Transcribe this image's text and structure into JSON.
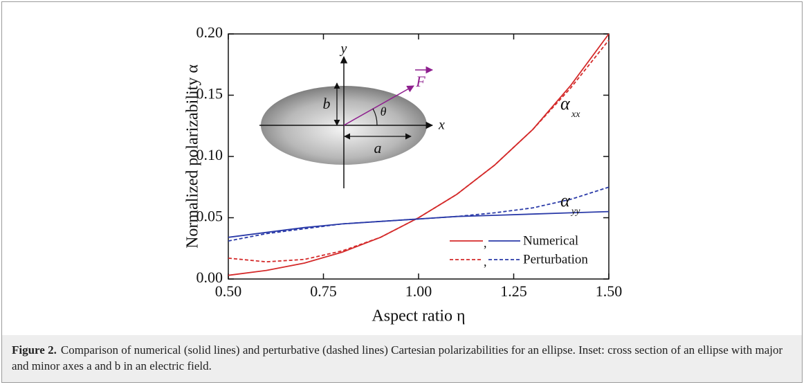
{
  "chart_data": {
    "type": "line",
    "x_label": "Aspect ratio η",
    "y_label": "Normalized polarizability α",
    "x": [
      0.5,
      0.6,
      0.7,
      0.8,
      0.9,
      1.0,
      1.1,
      1.2,
      1.3,
      1.4,
      1.5
    ],
    "series": [
      {
        "color": "#d42a2a",
        "style": "solid",
        "values": [
          0.003,
          0.007,
          0.013,
          0.022,
          0.034,
          0.05,
          0.069,
          0.093,
          0.122,
          0.158,
          0.2
        ]
      },
      {
        "color": "#d42a2a",
        "style": "dashed",
        "values": [
          0.017,
          0.014,
          0.016,
          0.023,
          0.034,
          0.05,
          0.069,
          0.093,
          0.122,
          0.156,
          0.195
        ]
      },
      {
        "color": "#2a3aa8",
        "style": "solid",
        "values": [
          0.034,
          0.038,
          0.042,
          0.045,
          0.047,
          0.049,
          0.051,
          0.052,
          0.053,
          0.054,
          0.055
        ]
      },
      {
        "color": "#2a3aa8",
        "style": "dashed",
        "values": [
          0.031,
          0.037,
          0.041,
          0.045,
          0.047,
          0.049,
          0.051,
          0.054,
          0.058,
          0.065,
          0.075
        ]
      }
    ],
    "xlim": [
      0.5,
      1.5
    ],
    "ylim": [
      0,
      0.2
    ],
    "xticks": [
      {
        "value": 0.5,
        "label": "0.50"
      },
      {
        "value": 0.75,
        "label": "0.75"
      },
      {
        "value": 1.0,
        "label": "1.00"
      },
      {
        "value": 1.25,
        "label": "1.25"
      },
      {
        "value": 1.5,
        "label": "1.50"
      }
    ],
    "yticks": [
      {
        "value": 0,
        "label": "0.00"
      },
      {
        "value": 0.05,
        "label": "0.05"
      },
      {
        "value": 0.1,
        "label": "0.10"
      },
      {
        "value": 0.15,
        "label": "0.15"
      },
      {
        "value": 0.2,
        "label": "0.20"
      }
    ],
    "legend": {
      "separator": ",",
      "entries": [
        {
          "label": "Numerical",
          "style": "solid"
        },
        {
          "label": "Perturbation",
          "style": "dashed"
        }
      ]
    },
    "annotations": [
      {
        "text": "α",
        "sub": "xx"
      },
      {
        "text": "α",
        "sub": "yy"
      }
    ],
    "inset": {
      "x_axis": "x",
      "y_axis": "y",
      "major": "a",
      "minor": "b",
      "angle": "θ",
      "field": "F"
    }
  },
  "caption": {
    "label": "Figure 2.",
    "text": "Comparison of numerical (solid lines) and perturbative (dashed lines) Cartesian polarizabilities for an ellipse. Inset: cross section of an ellipse with major and minor axes a and b in an electric field."
  }
}
